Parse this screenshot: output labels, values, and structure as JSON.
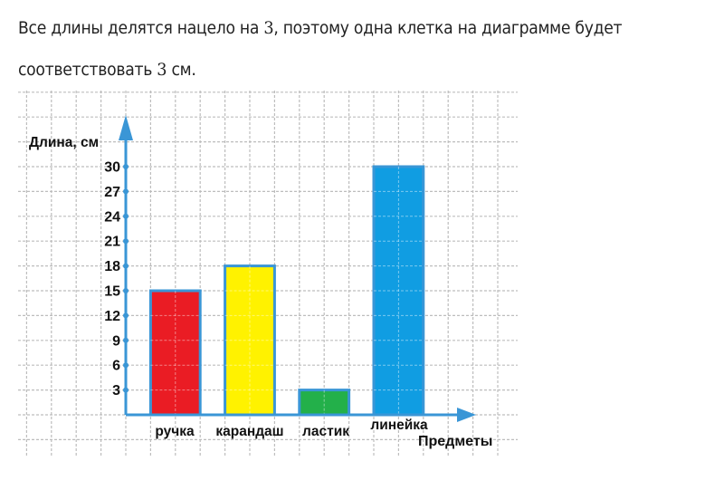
{
  "text": {
    "line1_before": "Все длины делятся нацело на ",
    "line1_num": "3",
    "line1_after": ", поэтому одна клетка на диаграмме будет",
    "line2_before": "соответствовать ",
    "line2_num": "3",
    "line2_after": " см."
  },
  "colors": {
    "axis": "#3a96d6",
    "grid": "#bdbdbd",
    "bar_border": "#3a96d6"
  },
  "chart_data": {
    "type": "bar",
    "title": "",
    "xlabel": "Предметы",
    "ylabel": "Длина, см",
    "categories": [
      "ручка",
      "карандаш",
      "ластик",
      "линейка"
    ],
    "values": [
      15,
      18,
      3,
      30
    ],
    "bar_colors": [
      "#ea1c24",
      "#fff200",
      "#23b04a",
      "#109de2"
    ],
    "yticks": [
      3,
      6,
      9,
      12,
      15,
      18,
      21,
      24,
      27,
      30
    ],
    "ylim": [
      0,
      33
    ],
    "grid": true,
    "grid_step": 3,
    "legend": "none"
  }
}
